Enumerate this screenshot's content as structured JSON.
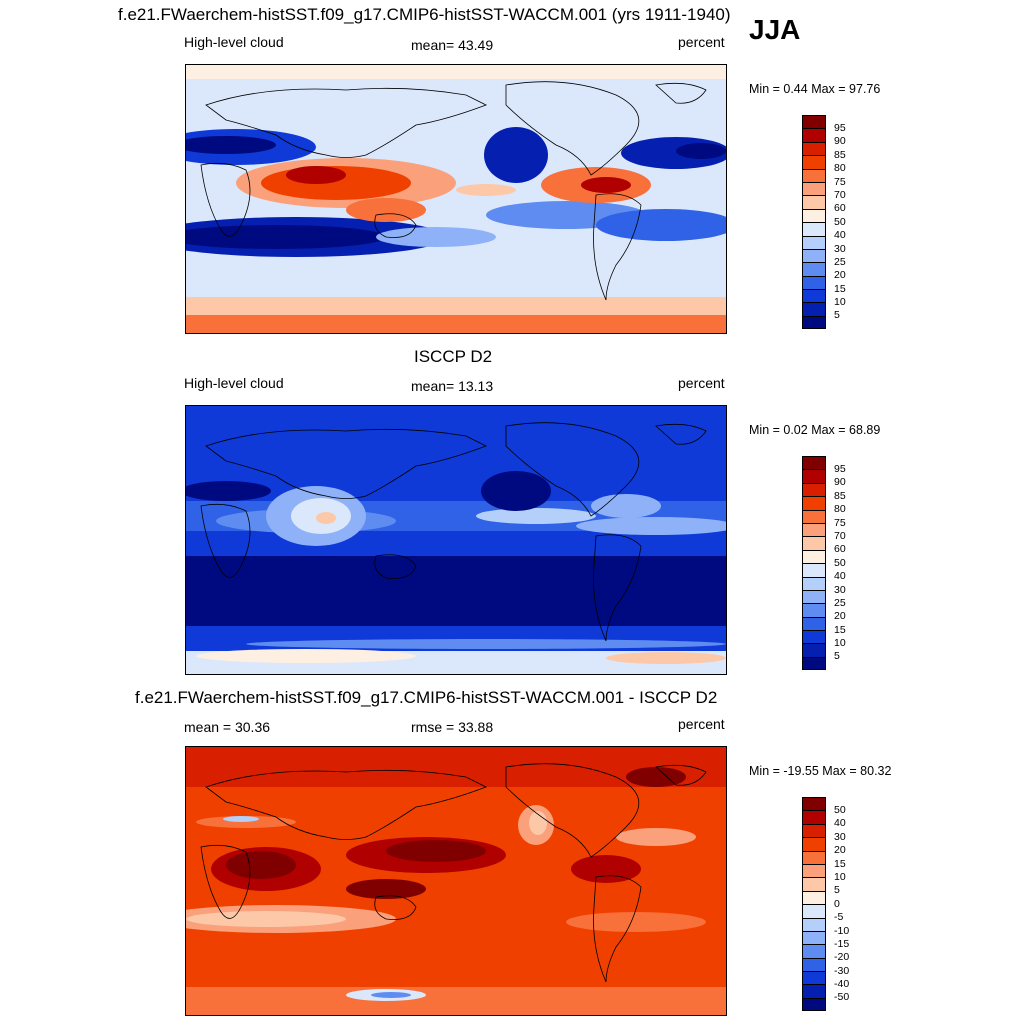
{
  "season": "JJA",
  "panels": [
    {
      "title": "f.e21.FWaerchem-histSST.f09_g17.CMIP6-histSST-WACCM.001 (yrs 1911-1940)",
      "left_label": "High-level cloud",
      "center_label": "mean=  43.49",
      "right_label": "percent",
      "minmax": "Min =   0.44 Max =  97.76",
      "colorbar_labels": [
        "95",
        "90",
        "85",
        "80",
        "75",
        "70",
        "60",
        "50",
        "40",
        "30",
        "25",
        "20",
        "15",
        "10",
        "5"
      ],
      "palette": [
        "#800000",
        "#b00000",
        "#d82000",
        "#f04000",
        "#f8703a",
        "#faa07a",
        "#fcc8a8",
        "#fdefe2",
        "#dbe8fc",
        "#b4cffa",
        "#8eb1f8",
        "#5e8cf0",
        "#2f62e6",
        "#0f3ad8",
        "#0520b0",
        "#000a80"
      ]
    },
    {
      "title": "ISCCP D2",
      "left_label": "High-level cloud",
      "center_label": "mean=  13.13",
      "right_label": "percent",
      "minmax": "Min =   0.02 Max =  68.89",
      "colorbar_labels": [
        "95",
        "90",
        "85",
        "80",
        "75",
        "70",
        "60",
        "50",
        "40",
        "30",
        "25",
        "20",
        "15",
        "10",
        "5"
      ],
      "palette": [
        "#800000",
        "#b00000",
        "#d82000",
        "#f04000",
        "#f8703a",
        "#faa07a",
        "#fcc8a8",
        "#fdefe2",
        "#dbe8fc",
        "#b4cffa",
        "#8eb1f8",
        "#5e8cf0",
        "#2f62e6",
        "#0f3ad8",
        "#0520b0",
        "#000a80"
      ]
    },
    {
      "title": "f.e21.FWaerchem-histSST.f09_g17.CMIP6-histSST-WACCM.001 - ISCCP D2",
      "left_label": "mean =  30.36",
      "center_label": "rmse =  33.88",
      "right_label": "percent",
      "minmax": "Min = -19.55 Max =  80.32",
      "colorbar_labels": [
        "50",
        "40",
        "30",
        "20",
        "15",
        "10",
        "5",
        "0",
        "-5",
        "-10",
        "-15",
        "-20",
        "-30",
        "-40",
        "-50"
      ],
      "palette": [
        "#800000",
        "#b00000",
        "#d82000",
        "#f04000",
        "#f8703a",
        "#faa07a",
        "#fcc8a8",
        "#fdefe2",
        "#dbe8fc",
        "#b4cffa",
        "#8eb1f8",
        "#5e8cf0",
        "#2f62e6",
        "#0f3ad8",
        "#0520b0",
        "#000a80"
      ]
    }
  ]
}
